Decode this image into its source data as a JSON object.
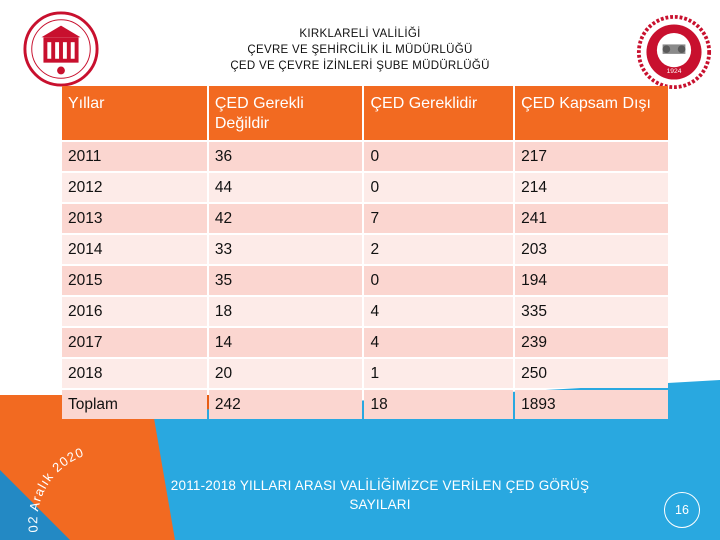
{
  "header": {
    "line1": "KIRKLARELİ VALİLİĞİ",
    "line2": "ÇEVRE VE ŞEHİRCİLİK İL MÜDÜRLÜĞÜ",
    "line3": "ÇED VE ÇEVRE İZİNLERİ ŞUBE MÜDÜRLÜĞÜ"
  },
  "logos": {
    "left": "turkish-ministry-emblem-icon",
    "right": "kirklareli-governorship-seal-icon",
    "seal_year": "1924"
  },
  "table": {
    "columns": [
      "Yıllar",
      "ÇED Gerekli Değildir",
      "ÇED Gereklidir",
      "ÇED Kapsam Dışı"
    ],
    "rows": [
      [
        "2011",
        "36",
        "0",
        "217"
      ],
      [
        "2012",
        "44",
        "0",
        "214"
      ],
      [
        "2013",
        "42",
        "7",
        "241"
      ],
      [
        "2014",
        "33",
        "2",
        "203"
      ],
      [
        "2015",
        "35",
        "0",
        "194"
      ],
      [
        "2016",
        "18",
        "4",
        "335"
      ],
      [
        "2017",
        "14",
        "4",
        "239"
      ],
      [
        "2018",
        "20",
        "1",
        "250"
      ],
      [
        "Toplam",
        "242",
        "18",
        "1893"
      ]
    ]
  },
  "caption": {
    "line1": "2011-2018 YILLARI ARASI VALİLİĞİMİZCE VERİLEN ÇED GÖRÜŞ",
    "line2": "SAYILARI"
  },
  "date_text": "02 Aralık 2020",
  "page_number": "16",
  "colors": {
    "header_orange": "#f26a21",
    "row_odd": "#fbd6d0",
    "row_even": "#fdebe8",
    "bg_blue": "#29a8e0",
    "bg_orange": "#f26a21"
  }
}
